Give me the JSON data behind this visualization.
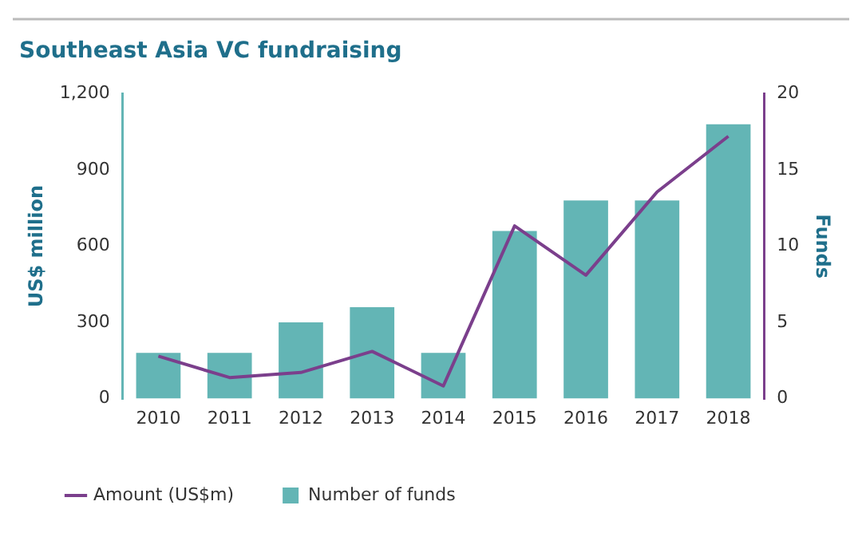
{
  "chart_data": {
    "type": "bar",
    "title": "Southeast Asia VC fundraising",
    "ylabel": "US$ million",
    "y2label": "Funds",
    "categories": [
      "2010",
      "2011",
      "2012",
      "2013",
      "2014",
      "2015",
      "2016",
      "2017",
      "2018"
    ],
    "series": [
      {
        "name": "Amount (US$m)",
        "type": "line",
        "color": "#7b3f8c",
        "values": [
          167,
          83,
          103,
          186,
          50,
          680,
          486,
          814,
          1033
        ]
      },
      {
        "name": "Number of funds",
        "axis": "y2",
        "color": "#63b5b5",
        "values": [
          3,
          3,
          5,
          6,
          3,
          11,
          13,
          13,
          18
        ]
      }
    ],
    "ylim": [
      0,
      1200
    ],
    "yticks": [
      0,
      {
        "value": 300,
        "label": "300"
      },
      {
        "value": 600,
        "label": "600"
      },
      {
        "value": 900,
        "label": "900"
      },
      {
        "value": 1200,
        "label": "1,200"
      }
    ],
    "y2lim": [
      0,
      20
    ],
    "y2ticks": [
      0,
      5,
      10,
      15,
      20
    ],
    "grid": false,
    "legend": "bottom left",
    "marker": "none",
    "line_style": "solid"
  }
}
